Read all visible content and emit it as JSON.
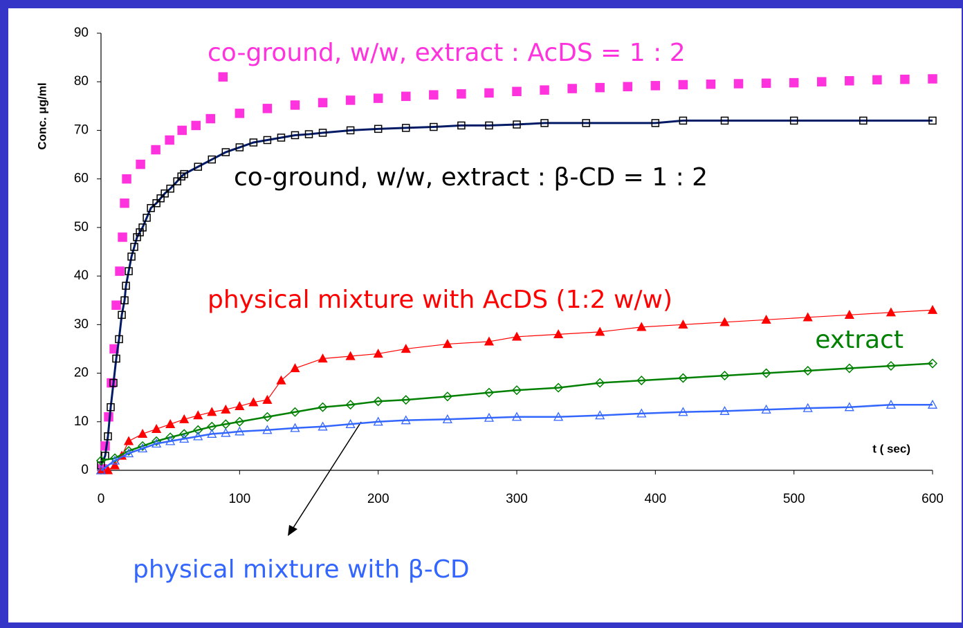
{
  "chart_data": {
    "type": "line",
    "x_label": "t ( sec)",
    "y_label": "Conc. μg/ml",
    "xlim": [
      0,
      600
    ],
    "xticks": [
      0,
      100,
      200,
      300,
      400,
      500,
      600
    ],
    "ylim": [
      0,
      90
    ],
    "yticks": [
      0,
      10,
      20,
      30,
      40,
      50,
      60,
      70,
      80,
      90
    ],
    "series": [
      {
        "name": "co-ground, w/w,  extract : AcDS = 1 : 2",
        "color": "#ff33dd",
        "marker": "square-filled",
        "x": [
          1,
          3,
          5.5,
          7.5,
          9.5,
          11,
          13.5,
          15.5,
          17,
          18.5,
          28.5,
          39.5,
          49.5,
          58.5,
          68.5,
          79,
          88,
          100,
          120,
          140,
          160,
          180,
          200,
          220,
          240,
          260,
          280,
          300,
          320,
          340,
          360,
          380,
          400,
          420,
          440,
          460,
          480,
          500,
          520,
          540,
          560,
          580,
          600
        ],
        "values": [
          0.3,
          5,
          11,
          18,
          25,
          34,
          41,
          48,
          55,
          60,
          63,
          66,
          68,
          70,
          71,
          72.4,
          81,
          73.5,
          74.5,
          75.2,
          75.7,
          76.2,
          76.6,
          77,
          77.3,
          77.5,
          77.7,
          78,
          78.3,
          78.6,
          78.8,
          79,
          79.2,
          79.4,
          79.5,
          79.6,
          79.7,
          79.8,
          80,
          80.2,
          80.4,
          80.5,
          80.6
        ]
      },
      {
        "name": "co-ground, w/w, extract : β-CD = 1 : 2",
        "color": "#000000",
        "line_color": "#001a66",
        "marker": "square-open",
        "x": [
          0,
          3,
          5,
          7,
          9,
          11,
          13,
          15,
          17,
          18,
          20,
          22,
          24,
          26,
          28,
          30,
          33,
          36,
          40,
          43,
          46,
          50,
          55,
          58,
          60,
          70,
          80,
          90,
          100,
          110,
          120,
          130,
          140,
          150,
          160,
          180,
          200,
          220,
          240,
          260,
          280,
          300,
          320,
          350,
          400,
          420,
          450,
          500,
          550,
          600
        ],
        "values": [
          1,
          3,
          7,
          13,
          18,
          23,
          27,
          32,
          35,
          38,
          41,
          44,
          46,
          48,
          49,
          50,
          52,
          54,
          55,
          56,
          57,
          58,
          59.5,
          60.5,
          61,
          62.5,
          64,
          65.5,
          66.5,
          67.5,
          68,
          68.5,
          69,
          69.2,
          69.5,
          70,
          70.3,
          70.5,
          70.7,
          71,
          71,
          71.2,
          71.5,
          71.5,
          71.5,
          72,
          72,
          72,
          72,
          72
        ]
      },
      {
        "name": "physical mixture with AcDS (1:2 w/w)",
        "color": "#ff0000",
        "line_color": "#ff0000",
        "marker": "triangle-filled",
        "x": [
          0,
          5,
          10,
          15,
          20,
          30,
          40,
          50,
          60,
          70,
          80,
          90,
          100,
          110,
          120,
          130,
          140,
          160,
          180,
          200,
          220,
          250,
          280,
          300,
          330,
          360,
          390,
          420,
          450,
          480,
          510,
          540,
          570,
          600
        ],
        "values": [
          0,
          0,
          1,
          3,
          6,
          7.5,
          8.5,
          9.5,
          10.5,
          11.3,
          12,
          12.5,
          13.2,
          14,
          14.5,
          18.5,
          21,
          23,
          23.5,
          24,
          25,
          26,
          26.5,
          27.5,
          28,
          28.5,
          29.5,
          30,
          30.5,
          31,
          31.5,
          32,
          32.5,
          33
        ]
      },
      {
        "name": "extract",
        "color": "#008000",
        "line_color": "#008000",
        "marker": "diamond-open",
        "x": [
          0,
          10,
          20,
          30,
          40,
          50,
          60,
          70,
          80,
          90,
          100,
          120,
          140,
          160,
          180,
          200,
          220,
          250,
          280,
          300,
          330,
          360,
          390,
          420,
          450,
          480,
          510,
          540,
          570,
          600
        ],
        "values": [
          2,
          2.5,
          4,
          5,
          6,
          6.8,
          7.5,
          8.3,
          9,
          9.5,
          10,
          11,
          12,
          13,
          13.5,
          14.2,
          14.5,
          15.2,
          16,
          16.5,
          17,
          18,
          18.5,
          19,
          19.5,
          20,
          20.5,
          21,
          21.5,
          22
        ]
      },
      {
        "name": "physical mixture with β-CD",
        "color": "#3366ff",
        "line_color": "#3366ff",
        "marker": "triangle-open",
        "x": [
          0,
          10,
          20,
          30,
          40,
          50,
          60,
          70,
          80,
          90,
          100,
          120,
          140,
          160,
          180,
          200,
          220,
          250,
          280,
          300,
          330,
          360,
          390,
          420,
          450,
          480,
          510,
          540,
          570,
          600
        ],
        "values": [
          0,
          2,
          3.5,
          4.5,
          5.5,
          6,
          6.5,
          7,
          7.5,
          7.7,
          8,
          8.3,
          8.7,
          9,
          9.5,
          10,
          10.3,
          10.5,
          10.8,
          11,
          11,
          11.3,
          11.7,
          12,
          12.2,
          12.5,
          12.8,
          13,
          13.5,
          13.5
        ]
      }
    ]
  }
}
